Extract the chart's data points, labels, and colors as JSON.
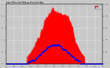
{
  "title": "Solar PV/Inv Perf W.Array Pwr & Sol.Rad",
  "bg_color": "#c8c8c8",
  "plot_bg_color": "#c8c8c8",
  "grid_color": "#ffffff",
  "red_color": "#ff0000",
  "blue_color": "#0000ff",
  "figsize": [
    1.6,
    1.0
  ],
  "dpi": 100,
  "legend_labels": [
    "kW REAL",
    "MEAN kW",
    "W/m2 AVG",
    "kWh TOT"
  ],
  "legend_colors": [
    "#ff0000",
    "#ff8800",
    "#0000ff",
    "#ff00ff"
  ]
}
